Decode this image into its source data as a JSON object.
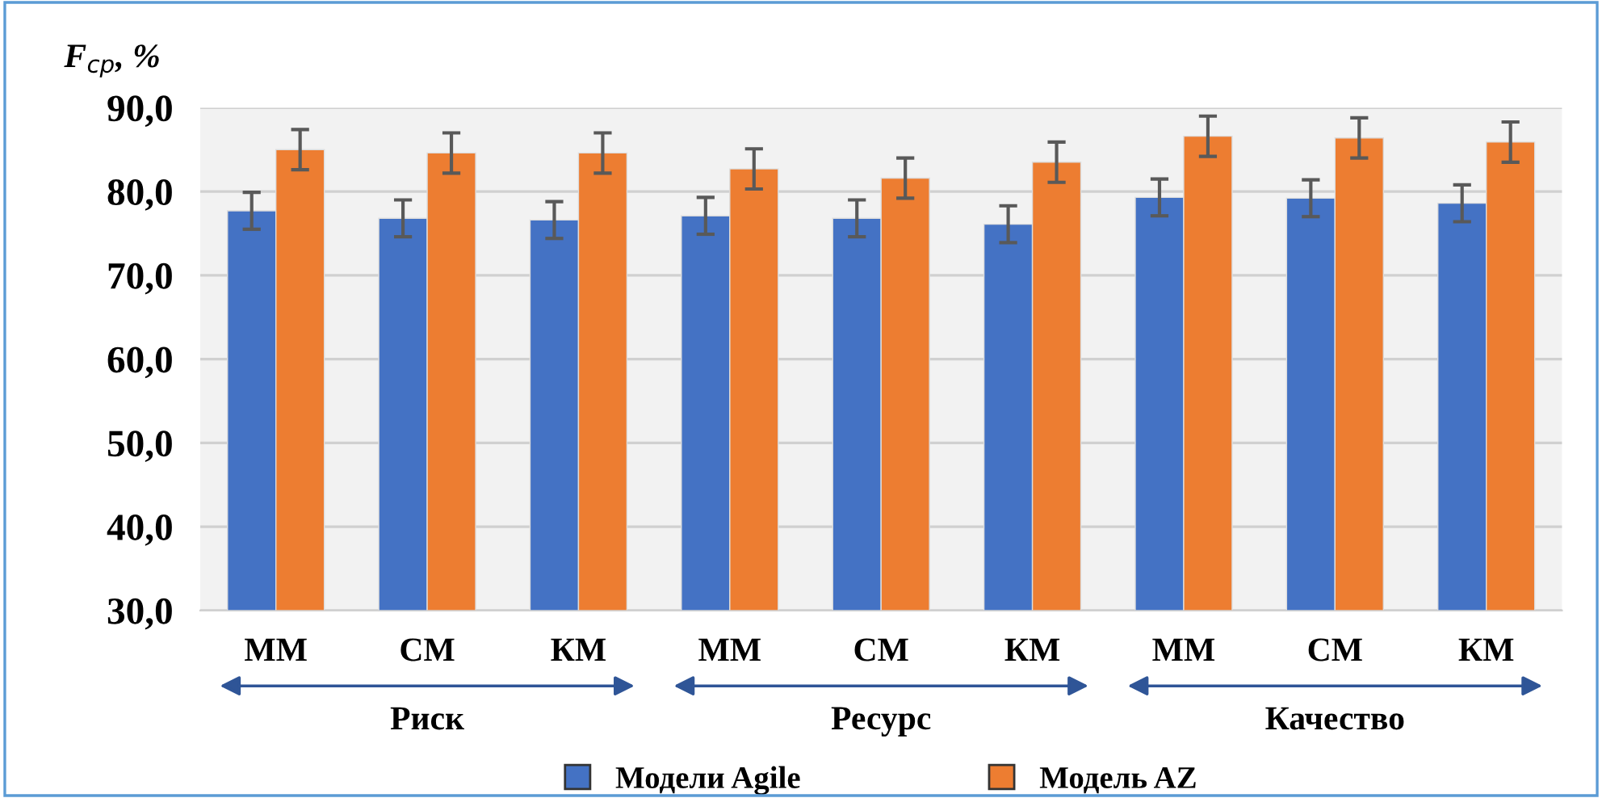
{
  "chart_data": {
    "type": "bar",
    "ylabel": "F$_{ср}$, %",
    "categories": [
      "ММ",
      "СМ",
      "КМ",
      "ММ",
      "СМ",
      "КМ",
      "ММ",
      "СМ",
      "КМ"
    ],
    "annotations": [
      "Риск",
      "Ресурс",
      "Качество"
    ],
    "series": [
      {
        "name": "Модели Agile",
        "color": "#4472c4",
        "values": [
          77.7,
          76.8,
          76.6,
          77.1,
          76.8,
          76.1,
          79.3,
          79.2,
          78.6
        ],
        "errors": [
          2.2,
          2.2,
          2.2,
          2.2,
          2.2,
          2.2,
          2.2,
          2.2,
          2.2
        ]
      },
      {
        "name": "Модель AZ",
        "color": "#ed7d31",
        "values": [
          85.0,
          84.6,
          84.6,
          82.7,
          81.6,
          83.5,
          86.6,
          86.4,
          85.9
        ],
        "errors": [
          2.4,
          2.4,
          2.4,
          2.4,
          2.4,
          2.4,
          2.4,
          2.4,
          2.4
        ]
      }
    ],
    "ylim": [
      30,
      90
    ],
    "yticks": [
      {
        "value": 30,
        "label": "30,0"
      },
      {
        "value": 40,
        "label": "40,0"
      },
      {
        "value": 50,
        "label": "50,0"
      },
      {
        "value": 60,
        "label": "60,0"
      },
      {
        "value": 70,
        "label": "70,0"
      },
      {
        "value": 80,
        "label": "80,0"
      },
      {
        "value": 90,
        "label": "90,0"
      }
    ],
    "grid": "y",
    "legend": "bottom"
  }
}
